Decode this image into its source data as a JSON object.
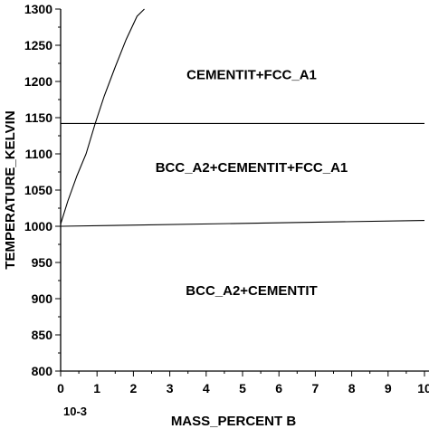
{
  "chart_data": {
    "type": "line",
    "title": "",
    "xlabel": "MASS_PERCENT B",
    "x_multiplier": "10-3",
    "ylabel": "TEMPERATURE_KELVIN",
    "xlim": [
      0,
      10
    ],
    "ylim": [
      800,
      1300
    ],
    "x_ticks": [
      0,
      1,
      2,
      3,
      4,
      5,
      6,
      7,
      8,
      9,
      10
    ],
    "x_tick_labels": [
      "0",
      "1",
      "2",
      "3",
      "4",
      "5",
      "6",
      "7",
      "8",
      "9",
      "10"
    ],
    "y_ticks": [
      800,
      850,
      900,
      950,
      1000,
      1050,
      1100,
      1150,
      1200,
      1250,
      1300
    ],
    "y_tick_labels": [
      "800",
      "850",
      "900",
      "950",
      "1000",
      "1050",
      "1100",
      "1150",
      "1200",
      "1250",
      "1300"
    ],
    "grid": false,
    "series": [
      {
        "x": [
          0,
          10
        ],
        "y": [
          1000,
          1008
        ]
      },
      {
        "x": [
          0,
          10
        ],
        "y": [
          1142,
          1142
        ]
      },
      {
        "x": [
          0,
          0.2,
          0.45,
          0.7,
          0.95,
          1.2,
          1.5,
          1.8,
          2.1,
          2.3
        ],
        "y": [
          1003,
          1035,
          1070,
          1100,
          1142,
          1180,
          1220,
          1258,
          1290,
          1300
        ]
      }
    ],
    "annotations": [
      {
        "text": "CEMENTIT+FCC_A1",
        "x": 5.0,
        "y": 1203
      },
      {
        "text": "BCC_A2+CEMENTIT+FCC_A1",
        "x": 5.0,
        "y": 1075
      },
      {
        "text": "BCC_A2+CEMENTIT",
        "x": 5.0,
        "y": 905
      }
    ]
  }
}
